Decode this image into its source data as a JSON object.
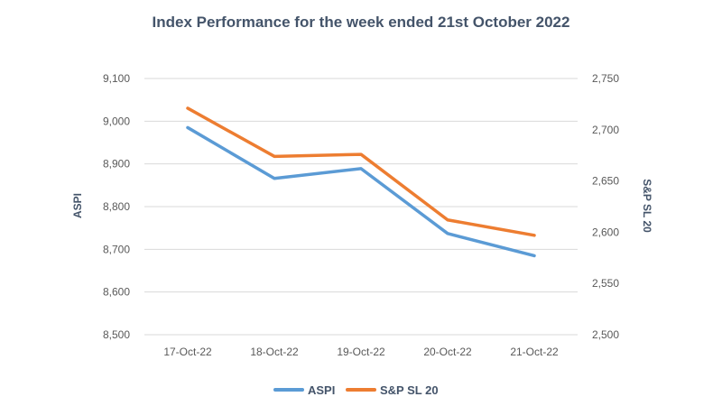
{
  "chart_data": {
    "type": "line",
    "title": "Index Performance for the week ended 21st October 2022",
    "categories": [
      "17-Oct-22",
      "18-Oct-22",
      "19-Oct-22",
      "20-Oct-22",
      "21-Oct-22"
    ],
    "ylabel": "ASPI",
    "y2label": "S&P SL 20",
    "ylim": [
      8500,
      9100
    ],
    "y2lim": [
      2500,
      2750
    ],
    "yticks": [
      "8,500",
      "8,600",
      "8,700",
      "8,800",
      "8,900",
      "9,000",
      "9,100"
    ],
    "y2ticks": [
      "2,500",
      "2,550",
      "2,600",
      "2,650",
      "2,700",
      "2,750"
    ],
    "grid": true,
    "legend": "bottom",
    "series": [
      {
        "name": "ASPI",
        "axis": "left",
        "color": "#5b9bd5",
        "values": [
          8985,
          8866,
          8889,
          8737,
          8685
        ]
      },
      {
        "name": "S&P SL 20",
        "axis": "right",
        "color": "#ed7d31",
        "values": [
          2721,
          2674,
          2676,
          2612,
          2597
        ]
      }
    ]
  }
}
